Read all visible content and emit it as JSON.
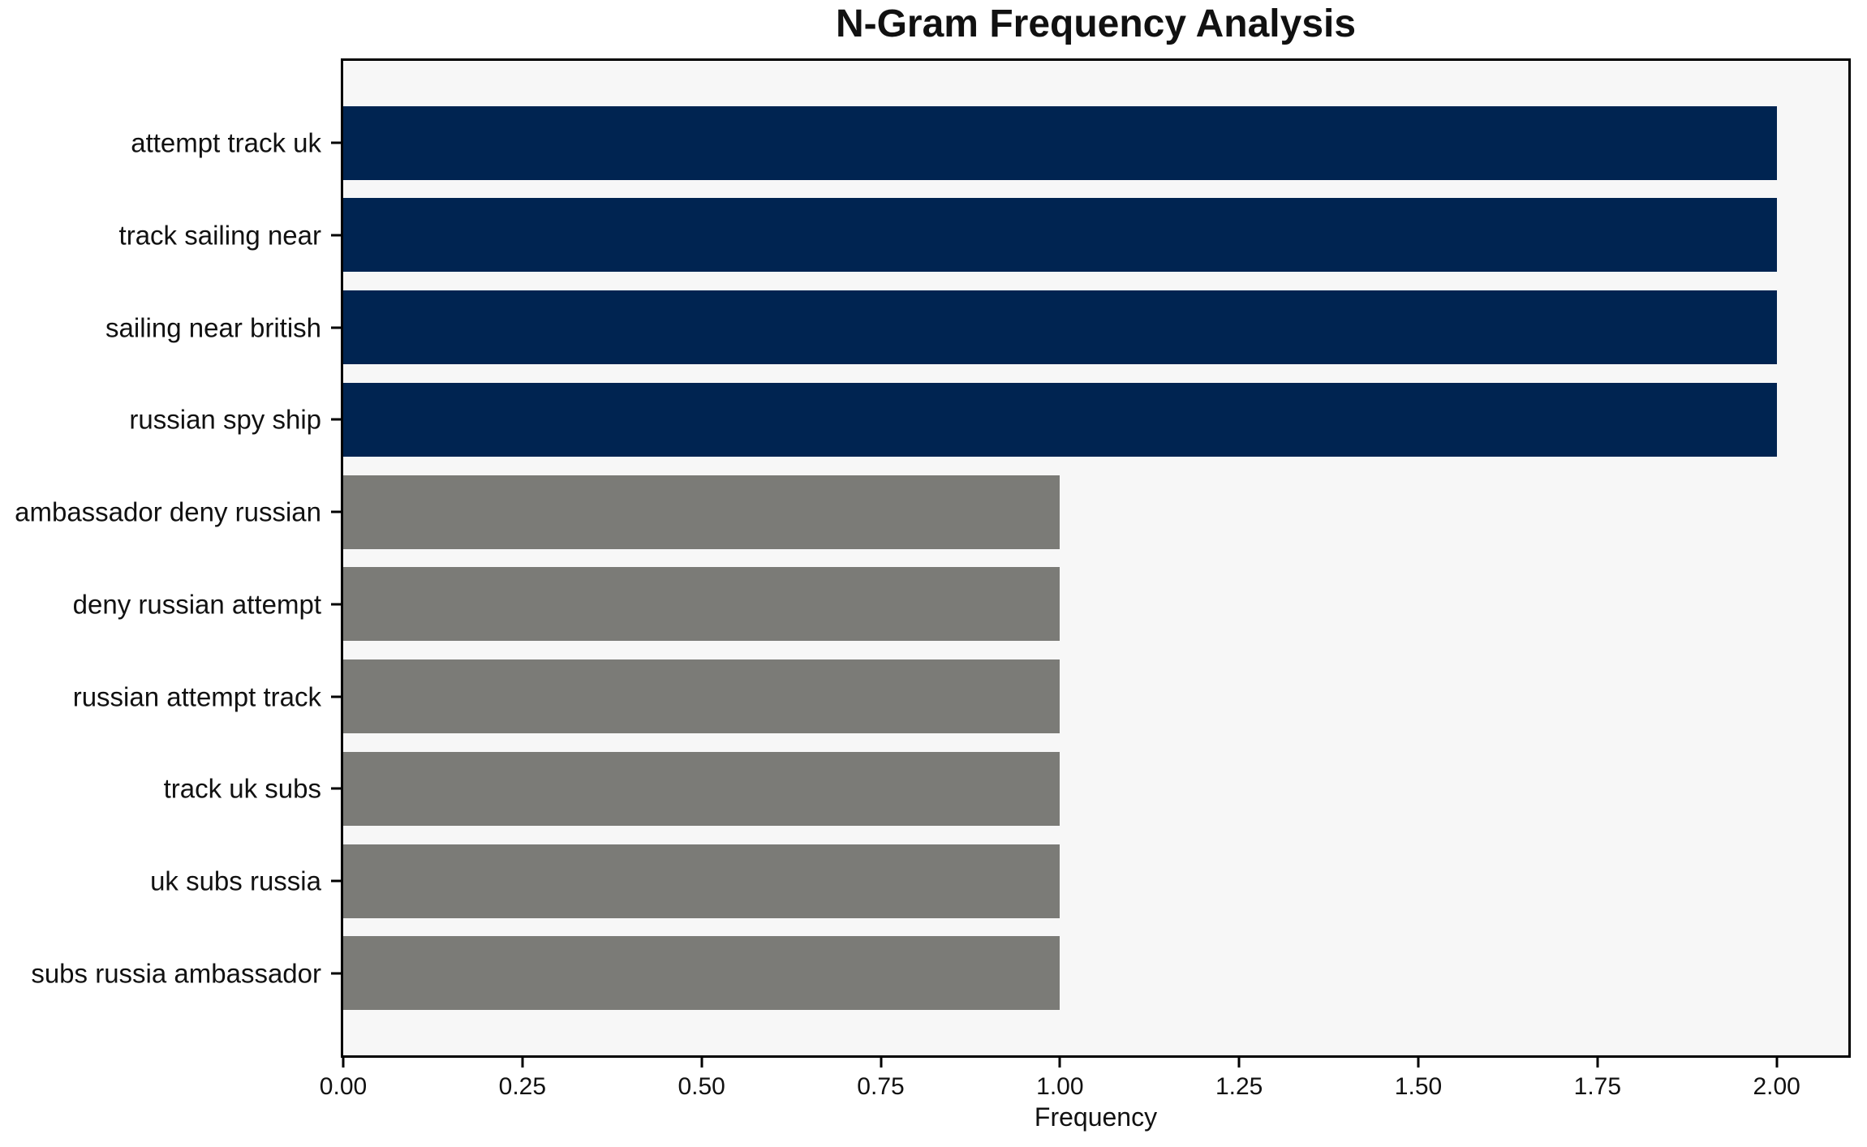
{
  "figure": {
    "background": "#ffffff",
    "plot_background": "#f7f7f7",
    "spine_color": "#000000",
    "text_color": "#111111"
  },
  "chart_data": {
    "type": "bar",
    "orientation": "horizontal",
    "title": "N-Gram Frequency Analysis",
    "xlabel": "Frequency",
    "ylabel": "",
    "categories": [
      "attempt track uk",
      "track sailing near",
      "sailing near british",
      "russian spy ship",
      "ambassador deny russian",
      "deny russian attempt",
      "russian attempt track",
      "track uk subs",
      "uk subs russia",
      "subs russia ambassador"
    ],
    "values": [
      2,
      2,
      2,
      2,
      1,
      1,
      1,
      1,
      1,
      1
    ],
    "bar_colors": [
      "#002451",
      "#002451",
      "#002451",
      "#002451",
      "#7b7b77",
      "#7b7b77",
      "#7b7b77",
      "#7b7b77",
      "#7b7b77",
      "#7b7b77"
    ],
    "color_legend": {
      "high_frequency_color": "#002451",
      "low_frequency_color": "#7b7b77"
    },
    "xlim": [
      0,
      2.1
    ],
    "xtick_values": [
      0.0,
      0.25,
      0.5,
      0.75,
      1.0,
      1.25,
      1.5,
      1.75,
      2.0
    ],
    "xtick_labels": [
      "0.00",
      "0.25",
      "0.50",
      "0.75",
      "1.00",
      "1.25",
      "1.50",
      "1.75",
      "2.00"
    ],
    "grid": false,
    "legend_position": "none"
  }
}
